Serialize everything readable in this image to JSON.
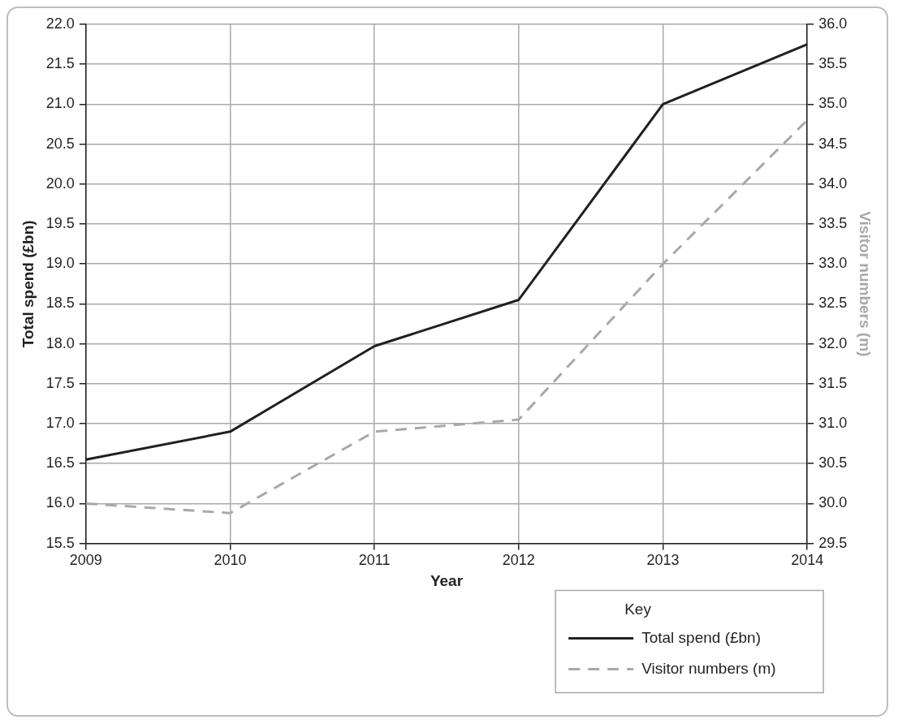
{
  "chart_data": {
    "type": "line",
    "xlabel": "Year",
    "ylabel": "Total spend (£bn)",
    "y2label": "Visitor numbers (m)",
    "legend_title": "Key",
    "categories": [
      "2009",
      "2010",
      "2011",
      "2012",
      "2013",
      "2014"
    ],
    "series": [
      {
        "name": "Total spend (£bn)",
        "color": "#231f20",
        "values": [
          16.55,
          16.9,
          17.97,
          18.55,
          21.0,
          21.75
        ],
        "line_style": "solid"
      },
      {
        "name": "Visitor numbers (m)",
        "color": "#a7a9ac",
        "values": [
          30.0,
          29.88,
          30.9,
          31.05,
          33.0,
          34.8
        ],
        "axis": "y2",
        "line_style": "dashed"
      }
    ],
    "ylim": [
      15.5,
      22.0
    ],
    "yticks": [
      15.5,
      {
        "value": 16,
        "label": "16.0"
      },
      16.5,
      {
        "value": 17,
        "label": "17.0"
      },
      17.5,
      {
        "value": 18,
        "label": "18.0"
      },
      18.5,
      {
        "value": 19,
        "label": "19.0"
      },
      19.5,
      {
        "value": 20,
        "label": "20.0"
      },
      20.5,
      {
        "value": 21,
        "label": "21.0"
      },
      21.5,
      {
        "value": 22,
        "label": "22.0"
      }
    ],
    "y2lim": [
      29.5,
      36.0
    ],
    "y2ticks": [
      29.5,
      {
        "value": 30,
        "label": "30.0"
      },
      30.5,
      {
        "value": 31,
        "label": "31.0"
      },
      31.5,
      {
        "value": 32,
        "label": "32.0"
      },
      32.5,
      {
        "value": 33,
        "label": "33.0"
      },
      33.5,
      {
        "value": 34,
        "label": "34.0"
      },
      34.5,
      {
        "value": 35,
        "label": "35.0"
      },
      35.5,
      {
        "value": 36,
        "label": "36.0"
      }
    ],
    "grid": true,
    "legend": "bottom right",
    "marker": "none"
  }
}
